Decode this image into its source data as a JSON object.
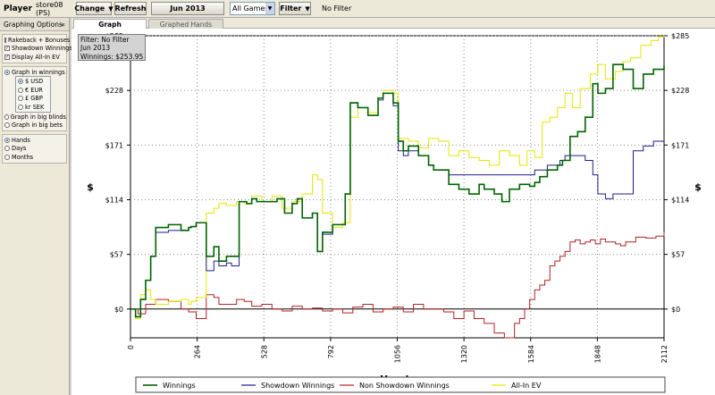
{
  "toolbar": {
    "player_label": "Player",
    "player_name": "store08 (PS)",
    "change_label": "Change",
    "refresh_label": "Refresh",
    "date_label": "Jun 2013",
    "games_value": "All Games",
    "filter_label": "Filter",
    "filter_status": "No Filter"
  },
  "sidebar": {
    "title": "Graphing Options",
    "checkboxes": [
      {
        "label": "Rakeback + Bonuses",
        "checked": false
      },
      {
        "label": "Showdown Winnings",
        "checked": true
      },
      {
        "label": "Display All-In EV",
        "checked": true
      }
    ],
    "graph_in_winnings": "Graph in winnings",
    "currencies": [
      {
        "label": "$ USD",
        "selected": true
      },
      {
        "label": "€ EUR",
        "selected": false
      },
      {
        "label": "£ GBP",
        "selected": false
      },
      {
        "label": "kr SEK",
        "selected": false
      }
    ],
    "graph_in_big_blinds": "Graph in big blinds",
    "graph_in_big_bets": "Graph in big bets",
    "x_units": [
      {
        "label": "Hands",
        "selected": true
      },
      {
        "label": "Days",
        "selected": false
      },
      {
        "label": "Months",
        "selected": false
      }
    ]
  },
  "tabs": [
    "Graph",
    "Graphed Hands"
  ],
  "info_box": {
    "line1": "Filter: No Filter",
    "line2": "Jun 2013",
    "line3": "Winnings: $253.95"
  },
  "chart_data": {
    "type": "line",
    "xlabel": "Hands",
    "ylabel": "$",
    "xlim": [
      0,
      2112
    ],
    "ylim": [
      -30,
      285
    ],
    "x_ticks": [
      "0",
      "264",
      "528",
      "792",
      "1056",
      "1320",
      "1584",
      "1848",
      "2112"
    ],
    "y_ticks": [
      "$0",
      "$57",
      "$114",
      "$171",
      "$228",
      "$285"
    ],
    "grid": true,
    "legend_position": "bottom",
    "series": [
      {
        "name": "Winnings",
        "color": "#006400",
        "x": [
          0,
          20,
          40,
          60,
          80,
          100,
          150,
          200,
          230,
          240,
          260,
          300,
          330,
          350,
          380,
          400,
          430,
          460,
          480,
          500,
          540,
          580,
          610,
          640,
          660,
          680,
          720,
          740,
          760,
          800,
          850,
          870,
          900,
          940,
          980,
          1000,
          1040,
          1060,
          1080,
          1100,
          1140,
          1180,
          1200,
          1260,
          1300,
          1340,
          1380,
          1400,
          1440,
          1470,
          1500,
          1540,
          1580,
          1600,
          1620,
          1650,
          1690,
          1710,
          1740,
          1770,
          1800,
          1830,
          1850,
          1880,
          1910,
          1950,
          1990,
          2030,
          2070,
          2112
        ],
        "y": [
          0,
          -8,
          10,
          30,
          55,
          85,
          88,
          82,
          85,
          86,
          90,
          55,
          65,
          50,
          55,
          55,
          112,
          110,
          115,
          112,
          112,
          115,
          100,
          110,
          115,
          95,
          100,
          60,
          80,
          88,
          120,
          215,
          210,
          202,
          220,
          225,
          215,
          175,
          165,
          170,
          160,
          150,
          145,
          130,
          125,
          120,
          130,
          125,
          120,
          112,
          125,
          130,
          128,
          132,
          138,
          145,
          150,
          155,
          180,
          185,
          200,
          235,
          225,
          230,
          255,
          250,
          230,
          245,
          250,
          253.95
        ]
      },
      {
        "name": "Showdown Winnings",
        "color": "#1e1e8c",
        "x": [
          0,
          20,
          40,
          60,
          80,
          100,
          150,
          200,
          230,
          240,
          260,
          300,
          330,
          350,
          380,
          400,
          430,
          460,
          480,
          500,
          540,
          580,
          610,
          640,
          660,
          680,
          720,
          740,
          760,
          800,
          850,
          870,
          900,
          940,
          980,
          1000,
          1040,
          1060,
          1080,
          1100,
          1140,
          1180,
          1200,
          1260,
          1300,
          1340,
          1380,
          1400,
          1440,
          1470,
          1500,
          1540,
          1580,
          1600,
          1650,
          1700,
          1720,
          1760,
          1800,
          1830,
          1850,
          1880,
          1910,
          1950,
          1990,
          2030,
          2070,
          2112
        ],
        "y": [
          0,
          -8,
          10,
          30,
          55,
          80,
          82,
          82,
          85,
          86,
          90,
          40,
          50,
          45,
          48,
          45,
          112,
          110,
          115,
          112,
          112,
          115,
          100,
          110,
          115,
          95,
          100,
          60,
          78,
          88,
          120,
          215,
          210,
          202,
          218,
          225,
          212,
          165,
          160,
          165,
          160,
          150,
          145,
          140,
          140,
          140,
          140,
          140,
          140,
          140,
          140,
          140,
          140,
          145,
          150,
          155,
          160,
          160,
          155,
          140,
          120,
          115,
          120,
          120,
          165,
          170,
          175,
          175
        ]
      },
      {
        "name": "Non Showdown Winnings",
        "color": "#b22222",
        "x": [
          0,
          30,
          60,
          100,
          150,
          200,
          230,
          260,
          300,
          330,
          350,
          380,
          420,
          450,
          480,
          520,
          560,
          600,
          640,
          680,
          720,
          760,
          800,
          840,
          880,
          920,
          960,
          1000,
          1040,
          1080,
          1120,
          1160,
          1200,
          1240,
          1280,
          1320,
          1360,
          1400,
          1440,
          1480,
          1520,
          1540,
          1560,
          1580,
          1600,
          1620,
          1640,
          1660,
          1680,
          1700,
          1720,
          1740,
          1760,
          1780,
          1800,
          1820,
          1840,
          1860,
          1880,
          1900,
          1920,
          1940,
          1960,
          2000,
          2040,
          2080,
          2112
        ],
        "y": [
          0,
          -5,
          5,
          10,
          8,
          0,
          -3,
          -10,
          15,
          12,
          5,
          5,
          10,
          8,
          3,
          5,
          0,
          -2,
          3,
          0,
          1,
          -2,
          0,
          -4,
          2,
          5,
          -3,
          0,
          2,
          -3,
          5,
          0,
          0,
          -3,
          -10,
          -2,
          -10,
          -15,
          -25,
          -30,
          -15,
          -10,
          0,
          10,
          20,
          25,
          30,
          45,
          50,
          55,
          60,
          70,
          72,
          68,
          70,
          72,
          68,
          73,
          70,
          70,
          68,
          66,
          70,
          75,
          74,
          76,
          80
        ]
      },
      {
        "name": "All-In EV",
        "color": "#e6e600",
        "x": [
          0,
          20,
          40,
          60,
          80,
          100,
          150,
          200,
          230,
          240,
          260,
          300,
          330,
          350,
          380,
          420,
          450,
          480,
          520,
          560,
          600,
          640,
          680,
          720,
          740,
          760,
          800,
          840,
          870,
          900,
          940,
          980,
          1000,
          1040,
          1060,
          1100,
          1140,
          1180,
          1220,
          1260,
          1300,
          1340,
          1380,
          1420,
          1460,
          1500,
          1540,
          1570,
          1600,
          1630,
          1660,
          1690,
          1720,
          1750,
          1780,
          1820,
          1850,
          1880,
          1920,
          1950,
          1980,
          2020,
          2060,
          2090,
          2112
        ],
        "y": [
          0,
          -10,
          15,
          20,
          10,
          5,
          8,
          10,
          5,
          8,
          12,
          100,
          105,
          110,
          108,
          112,
          110,
          118,
          112,
          118,
          105,
          112,
          120,
          140,
          135,
          100,
          85,
          90,
          200,
          210,
          205,
          220,
          228,
          225,
          178,
          175,
          168,
          178,
          175,
          160,
          165,
          158,
          155,
          150,
          165,
          160,
          150,
          165,
          158,
          195,
          200,
          210,
          225,
          210,
          230,
          245,
          255,
          240,
          248,
          258,
          262,
          275,
          280,
          284,
          285
        ]
      }
    ]
  }
}
